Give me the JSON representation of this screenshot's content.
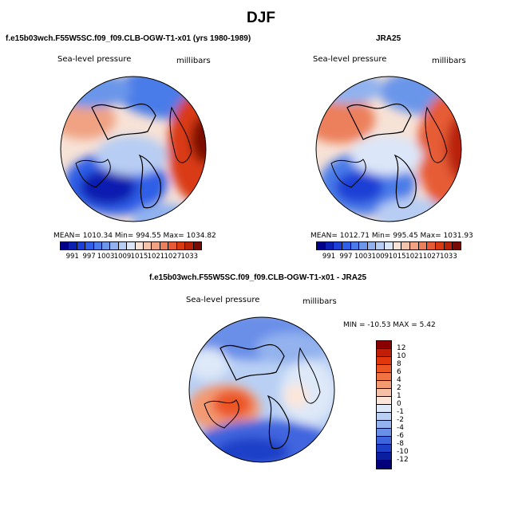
{
  "figure": {
    "title": "DJF"
  },
  "panel_model": {
    "title": "f.e15b03wch.F55W5SC.f09_f09.CLB-OGW-T1-x01 (yrs 1980-1989)",
    "field_label": "Sea-level pressure",
    "units_label": "millibars",
    "stats": "MEAN= 1010.34   Min= 994.55   Max= 1034.82",
    "mean": 1010.34,
    "min": 994.55,
    "max": 1034.82
  },
  "panel_obs": {
    "title": "JRA25",
    "field_label": "Sea-level pressure",
    "units_label": "millibars",
    "stats": "MEAN= 1012.71   Min= 995.45   Max= 1031.93",
    "mean": 1012.71,
    "min": 995.45,
    "max": 1031.93
  },
  "panel_diff": {
    "title": "f.e15b03wch.F55W5SC.f09_f09.CLB-OGW-T1-x01 - JRA25",
    "field_label": "Sea-level pressure",
    "units_label": "millibars",
    "stats": "MIN = -10.53 MAX =   5.42",
    "min": -10.53,
    "max": 5.42
  },
  "colorbar_abs": {
    "labels": [
      "991",
      "997",
      "1003",
      "1009",
      "1015",
      "1021",
      "1027",
      "1033"
    ],
    "colors": [
      "#00008b",
      "#0b1fb0",
      "#1e3fd6",
      "#2f5fe6",
      "#4a7be8",
      "#6b96ea",
      "#91b2ef",
      "#b7cdf3",
      "#dbe6f8",
      "#f7e2d6",
      "#f4c3ab",
      "#f0a283",
      "#ec805c",
      "#e65b35",
      "#d93a12",
      "#b82308",
      "#7a0a04"
    ]
  },
  "colorbar_diff": {
    "labels": [
      "12",
      "10",
      "8",
      "6",
      "4",
      "2",
      "1",
      "0",
      "-1",
      "-2",
      "-4",
      "-6",
      "-8",
      "-10",
      "-12"
    ],
    "colors": [
      "#8b0000",
      "#c01e05",
      "#e0380c",
      "#ec5625",
      "#f07443",
      "#f39a72",
      "#f6c0a4",
      "#fce6d9",
      "#dde8f8",
      "#b9d0f4",
      "#93b2ee",
      "#6a8fe8",
      "#3f65de",
      "#1e3fc8",
      "#0a1ea0",
      "#00007a"
    ]
  },
  "chart_data": {
    "type": "heatmap",
    "title": "DJF",
    "panels": [
      {
        "name": "f.e15b03wch.F55W5SC.f09_f09.CLB-OGW-T1-x01 (yrs 1980-1989)",
        "variable": "Sea-level pressure",
        "units": "millibars",
        "mean": 1010.34,
        "min": 994.55,
        "max": 1034.82
      },
      {
        "name": "JRA25",
        "variable": "Sea-level pressure",
        "units": "millibars",
        "mean": 1012.71,
        "min": 995.45,
        "max": 1031.93
      },
      {
        "name": "f.e15b03wch.F55W5SC.f09_f09.CLB-OGW-T1-x01 - JRA25",
        "variable": "Sea-level pressure",
        "units": "millibars",
        "min": -10.53,
        "max": 5.42
      }
    ]
  }
}
